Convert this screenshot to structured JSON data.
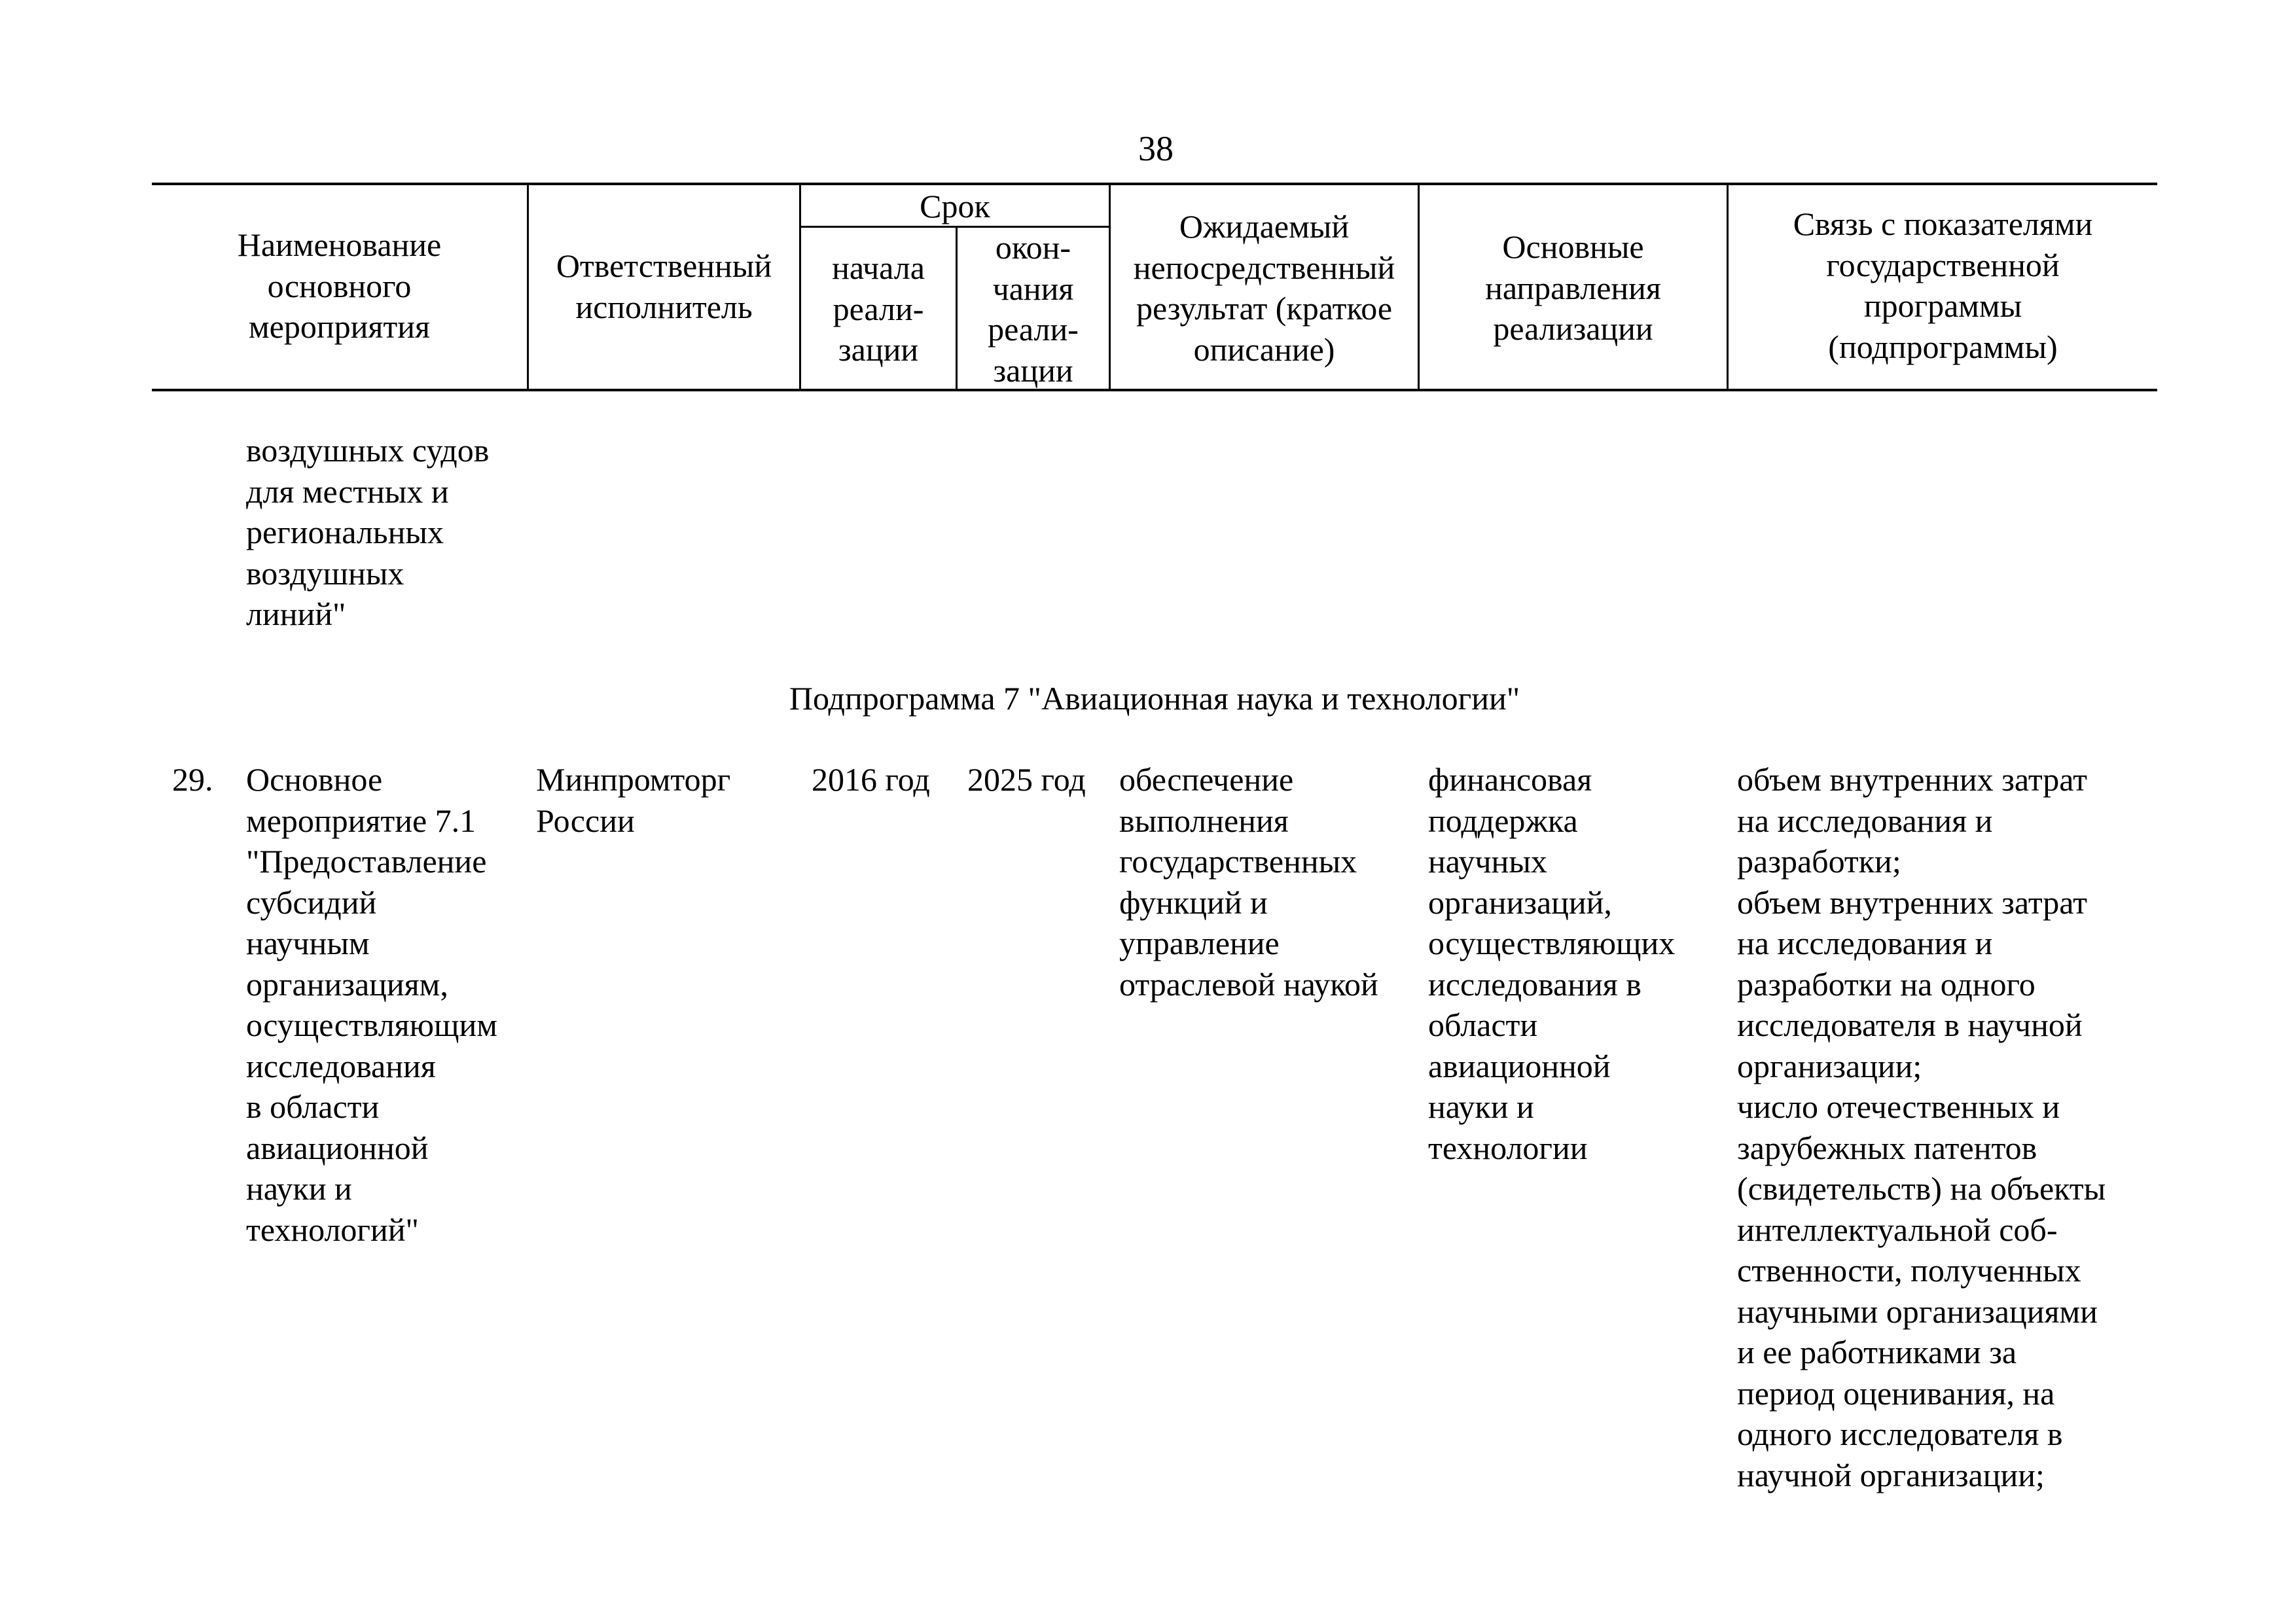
{
  "page_number": "38",
  "header": {
    "name": "Наименование\nосновного\nмероприятия",
    "executor": "Ответственный\nисполнитель",
    "term": "Срок",
    "start": "начала\nреали-\nзации",
    "end": "окон-\nчания\nреали-\nзации",
    "result": "Ожидаемый\nнепосредственный\nрезультат (краткое\nописание)",
    "directions": "Основные\nнаправления\nреализации",
    "link": "Связь с показателями\nгосударственной\nпрограммы\n(подпрограммы)"
  },
  "continuation": "воздушных судов\nдля местных и\nрегиональных\nвоздушных\nлиний\"",
  "subprogram_title": "Подпрограмма 7 \"Авиационная наука и технологии\"",
  "rows": [
    {
      "number": "29.",
      "name": "Основное\nмероприятие 7.1\n\"Предоставление\nсубсидий\nнаучным\nорганизациям,\nосуществляющим\nисследования\nв области\nавиационной\nнауки и\nтехнологий\"",
      "executor": "Минпромторг\nРоссии",
      "start": "2016 год",
      "end": "2025 год",
      "result": "обеспечение\nвыполнения\nгосударственных\nфункций и\nуправление\nотраслевой наукой",
      "directions": "финансовая\nподдержка\nнаучных\nорганизаций,\nосуществляющих\nисследования в\nобласти\nавиационной\nнауки и\nтехнологии",
      "link": "объем внутренних затрат\nна исследования и\nразработки;\nобъем внутренних затрат\nна исследования и\nразработки на одного\nисследователя в научной\nорганизации;\nчисло отечественных и\nзарубежных патентов\n(свидетельств) на объекты\nинтеллектуальной соб-\nственности, полученных\nнаучными организациями\nи ее работниками за\nпериод оценивания, на\nодного исследователя в\nнаучной организации;"
    }
  ]
}
